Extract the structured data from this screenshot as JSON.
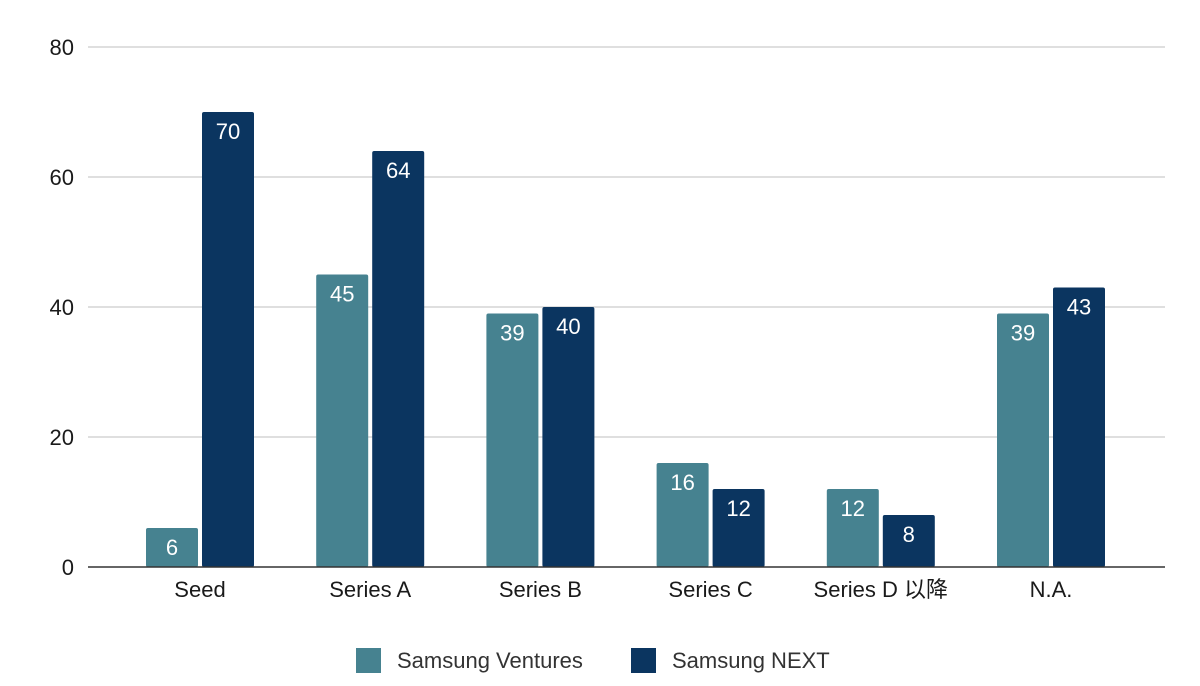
{
  "chart_data": {
    "type": "bar",
    "title": "",
    "xlabel": "",
    "ylabel": "",
    "categories": [
      "Seed",
      "Series A",
      "Series B",
      "Series C",
      "Series D 以降",
      "N.A."
    ],
    "series": [
      {
        "name": "Samsung Ventures",
        "color": "#468290",
        "values": [
          6,
          45,
          39,
          16,
          12,
          39
        ]
      },
      {
        "name": "Samsung NEXT",
        "color": "#0b3560",
        "values": [
          70,
          64,
          40,
          12,
          8,
          43
        ]
      }
    ],
    "ylim": [
      0,
      80
    ],
    "yticks": [
      0,
      20,
      40,
      60,
      80
    ],
    "grid": true,
    "legend_position": "bottom",
    "data_labels": true
  }
}
